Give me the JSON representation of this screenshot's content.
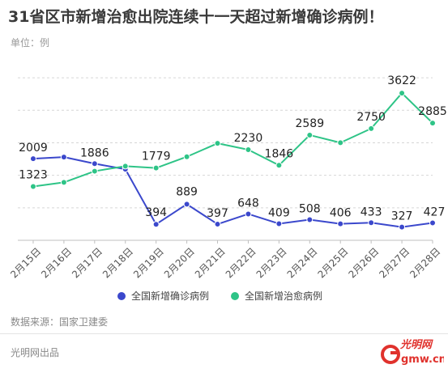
{
  "title": "31省区市新增治愈出院连续十一天超过新增确诊病例！",
  "unit": "单位：例",
  "source": "数据来源：国家卫建委",
  "producer": "光明网出品",
  "logo": {
    "glyphs": "光明网",
    "domain": "gmw.cn"
  },
  "colors": {
    "confirmed": "#3b48cc",
    "cured": "#2ec487",
    "grid": "#d6d6d6",
    "logo_red": "#e0322d"
  },
  "chart_data": {
    "type": "line",
    "title": "31省区市新增治愈出院连续十一天超过新增确诊病例！",
    "ylabel": "单位：例",
    "categories": [
      "2月15日",
      "2月16日",
      "2月17日",
      "2月18日",
      "2月19日",
      "2月20日",
      "2月21日",
      "2月22日",
      "2月23日",
      "2月24日",
      "2月25日",
      "2月26日",
      "2月27日",
      "2月28日"
    ],
    "ylim": [
      0,
      4400
    ],
    "grid": true,
    "legend": "bottom-center",
    "series": [
      {
        "name": "全国新增确诊病例",
        "color": "#3b48cc",
        "values": [
          2009,
          2048,
          1886,
          1749,
          394,
          889,
          397,
          648,
          409,
          508,
          406,
          433,
          327,
          427
        ],
        "labels": [
          "2009",
          "",
          "1886",
          "",
          "394",
          "889",
          "397",
          "648",
          "409",
          "508",
          "406",
          "433",
          "327",
          "427"
        ]
      },
      {
        "name": "全国新增治愈病例",
        "color": "#2ec487",
        "values": [
          1323,
          1425,
          1701,
          1824,
          1779,
          2056,
          2386,
          2230,
          1846,
          2589,
          2401,
          2750,
          3622,
          2885
        ],
        "labels": [
          "1323",
          "",
          "",
          "",
          "1779",
          "",
          "",
          "2230",
          "1846",
          "2589",
          "",
          "2750",
          "3622",
          "2885"
        ]
      }
    ]
  }
}
